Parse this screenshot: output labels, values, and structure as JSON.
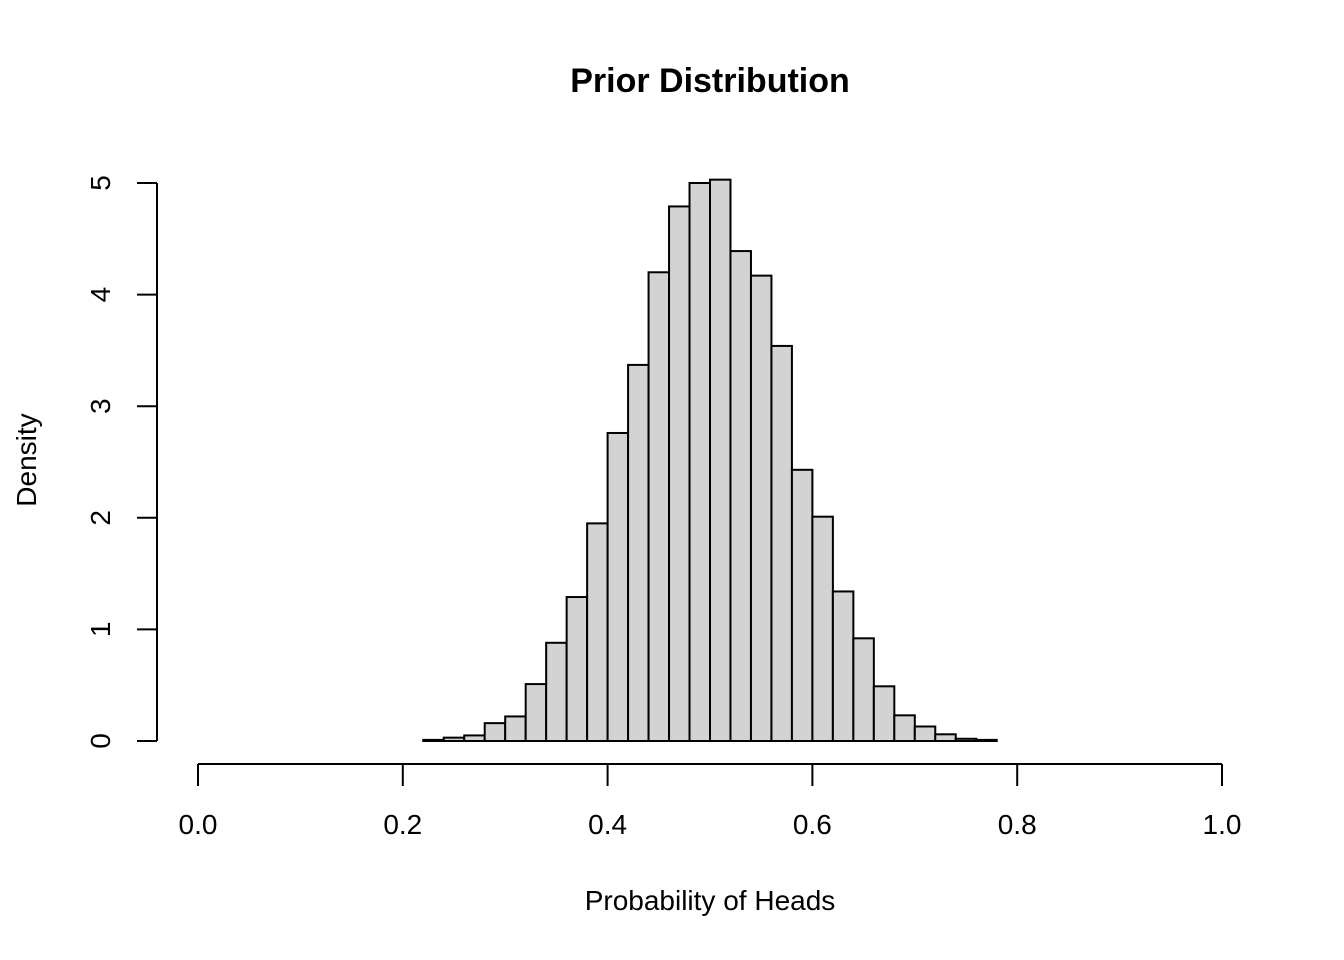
{
  "chart_data": {
    "type": "bar",
    "title": "Prior Distribution",
    "xlabel": "Probability of Heads",
    "ylabel": "Density",
    "x_ticks": [
      "0.0",
      "0.2",
      "0.4",
      "0.6",
      "0.8",
      "1.0"
    ],
    "y_ticks": [
      "0",
      "1",
      "2",
      "3",
      "4",
      "5"
    ],
    "xlim": [
      0,
      1
    ],
    "ylim": [
      0,
      5.2
    ],
    "bin_width": 0.02,
    "bins_start": [
      0.22,
      0.24,
      0.26,
      0.28,
      0.3,
      0.32,
      0.34,
      0.36,
      0.38,
      0.4,
      0.42,
      0.44,
      0.46,
      0.48,
      0.5,
      0.52,
      0.54,
      0.56,
      0.58,
      0.6,
      0.62,
      0.64,
      0.66,
      0.68,
      0.7,
      0.72,
      0.74,
      0.76
    ],
    "values": [
      0.01,
      0.03,
      0.05,
      0.16,
      0.22,
      0.51,
      0.88,
      1.29,
      1.95,
      2.76,
      3.37,
      4.2,
      4.79,
      5.0,
      5.03,
      4.39,
      4.17,
      3.54,
      2.43,
      2.01,
      1.34,
      0.92,
      0.49,
      0.23,
      0.13,
      0.06,
      0.02,
      0.01
    ],
    "bar_fill": "#d3d3d3",
    "bar_stroke": "#000000",
    "grid": false,
    "legend": "none"
  }
}
